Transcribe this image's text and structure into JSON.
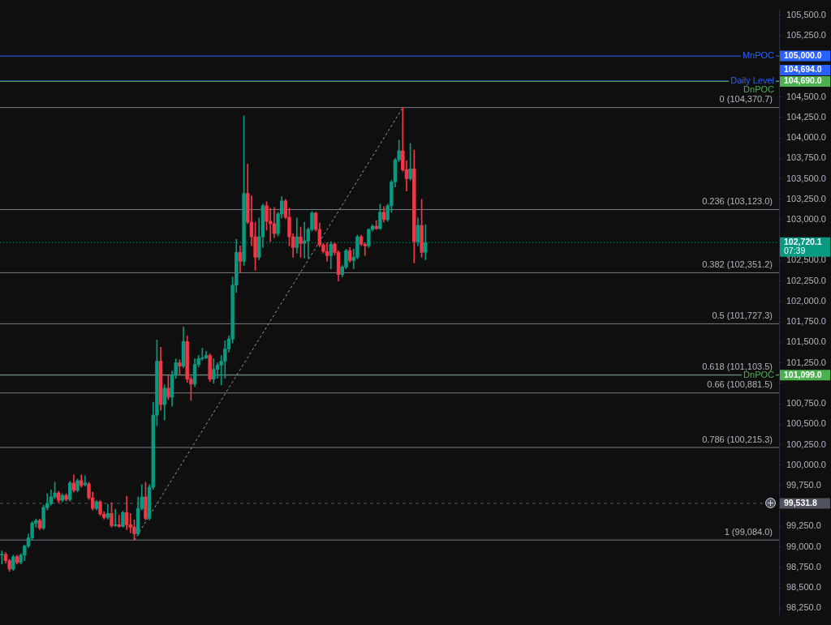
{
  "chart_data": {
    "type": "candlestick",
    "categories": [
      null,
      null,
      null,
      null,
      null,
      null,
      null,
      null,
      null,
      null,
      null,
      null,
      null,
      null,
      null,
      null,
      null,
      null,
      null,
      null,
      null,
      null,
      null,
      null,
      null,
      null,
      null,
      null,
      null,
      null,
      null,
      null,
      null,
      null,
      null,
      null,
      null,
      null,
      null,
      null,
      null,
      null,
      null,
      null,
      null,
      null,
      null,
      null,
      null,
      null,
      null,
      null,
      null,
      null,
      null,
      null,
      null,
      null,
      null,
      null,
      null,
      null,
      null,
      null,
      null,
      null,
      null,
      null,
      null,
      null,
      null,
      null,
      null,
      null,
      null,
      null,
      null,
      null,
      null,
      null,
      null,
      null,
      null,
      null,
      null,
      null,
      null,
      null,
      null,
      null,
      null,
      null,
      null,
      null,
      null,
      null,
      null,
      null,
      null,
      null,
      null,
      null,
      null,
      null,
      null,
      null,
      null,
      null,
      null,
      null,
      null,
      null,
      null,
      null,
      null,
      null,
      null,
      null,
      null,
      null,
      null,
      null,
      null,
      null,
      null,
      null,
      null,
      null,
      null,
      null,
      null,
      null,
      null,
      null,
      null,
      null,
      null,
      null,
      null,
      null,
      null,
      null,
      null,
      null,
      null,
      null,
      null,
      null,
      null,
      null,
      null,
      null,
      null,
      null,
      null,
      null,
      null,
      null,
      null,
      null,
      null,
      null,
      null,
      null,
      null,
      null,
      null,
      null,
      null,
      null,
      null,
      null,
      null,
      null,
      null,
      null,
      null,
      null,
      null,
      null,
      null,
      null,
      null,
      null,
      null,
      null,
      null,
      null,
      null,
      null,
      null,
      null,
      null,
      null,
      null,
      null,
      null,
      null,
      null,
      null,
      null,
      null,
      null,
      null,
      null,
      null
    ],
    "ohlc": [
      [
        98900,
        98950,
        98790,
        98910
      ],
      [
        98910,
        98930,
        98800,
        98830
      ],
      [
        98830,
        98850,
        98700,
        98730
      ],
      [
        98730,
        98900,
        98710,
        98880
      ],
      [
        98880,
        98900,
        98790,
        98810
      ],
      [
        98810,
        98920,
        98790,
        98900
      ],
      [
        98900,
        99020,
        98830,
        99010
      ],
      [
        99010,
        99160,
        98990,
        99110
      ],
      [
        99110,
        99310,
        99090,
        99290
      ],
      [
        99290,
        99340,
        99240,
        99320
      ],
      [
        99320,
        99340,
        99210,
        99230
      ],
      [
        99230,
        99510,
        99210,
        99480
      ],
      [
        99480,
        99650,
        99450,
        99530
      ],
      [
        99530,
        99700,
        99510,
        99610
      ],
      [
        99610,
        99790,
        99590,
        99660
      ],
      [
        99660,
        99680,
        99540,
        99570
      ],
      [
        99570,
        99650,
        99550,
        99630
      ],
      [
        99630,
        99650,
        99560,
        99580
      ],
      [
        99580,
        99800,
        99560,
        99780
      ],
      [
        99780,
        99880,
        99670,
        99690
      ],
      [
        99690,
        99830,
        99670,
        99810
      ],
      [
        99810,
        99880,
        99730,
        99750
      ],
      [
        99760,
        99870,
        99740,
        99780
      ],
      [
        99770,
        99790,
        99580,
        99600
      ],
      [
        99600,
        99670,
        99450,
        99470
      ],
      [
        99470,
        99570,
        99450,
        99550
      ],
      [
        99550,
        99570,
        99380,
        99400
      ],
      [
        99400,
        99430,
        99340,
        99360
      ],
      [
        99360,
        99520,
        99340,
        99410
      ],
      [
        99410,
        99540,
        99240,
        99260
      ],
      [
        99260,
        99460,
        99250,
        99270
      ],
      [
        99270,
        99390,
        99240,
        99250
      ],
      [
        99250,
        99440,
        99240,
        99420
      ],
      [
        99420,
        99620,
        99210,
        99270
      ],
      [
        99270,
        99410,
        99170,
        99240
      ],
      [
        99240,
        99330,
        99080,
        99160
      ],
      [
        99160,
        99610,
        99140,
        99470
      ],
      [
        99470,
        99760,
        99450,
        99610
      ],
      [
        99610,
        99790,
        99330,
        99350
      ],
      [
        99350,
        99760,
        99330,
        99730
      ],
      [
        99730,
        100770,
        99700,
        100610
      ],
      [
        100610,
        101530,
        100480,
        101270
      ],
      [
        101270,
        101440,
        100670,
        100740
      ],
      [
        100740,
        100980,
        100550,
        100940
      ],
      [
        100940,
        101100,
        100800,
        100830
      ],
      [
        100830,
        101150,
        100720,
        101100
      ],
      [
        101100,
        101300,
        101060,
        101250
      ],
      [
        101250,
        101290,
        101100,
        101210
      ],
      [
        101210,
        101690,
        101190,
        101510
      ],
      [
        101510,
        101580,
        101010,
        101050
      ],
      [
        101050,
        101080,
        100790,
        100990
      ],
      [
        100990,
        101300,
        100960,
        101230
      ],
      [
        101230,
        101340,
        101200,
        101300
      ],
      [
        101300,
        101430,
        101280,
        101310
      ],
      [
        101310,
        101390,
        101300,
        101340
      ],
      [
        101340,
        101360,
        101020,
        101050
      ],
      [
        101050,
        101300,
        101000,
        101170
      ],
      [
        101170,
        101250,
        101060,
        101220
      ],
      [
        101220,
        101340,
        100980,
        101270
      ],
      [
        101270,
        101520,
        101060,
        101420
      ],
      [
        101420,
        101580,
        101380,
        101540
      ],
      [
        101540,
        102300,
        101490,
        102200
      ],
      [
        102200,
        102760,
        102110,
        102600
      ],
      [
        102600,
        102680,
        102350,
        102490
      ],
      [
        102490,
        104270,
        102440,
        103320
      ],
      [
        103320,
        103680,
        102950,
        102970
      ],
      [
        102970,
        103290,
        102680,
        102790
      ],
      [
        102790,
        102970,
        102380,
        102540
      ],
      [
        102540,
        103020,
        102510,
        102790
      ],
      [
        102790,
        103190,
        102660,
        103170
      ],
      [
        103170,
        103220,
        102870,
        102980
      ],
      [
        102980,
        103140,
        102730,
        102950
      ],
      [
        102950,
        103150,
        102780,
        102830
      ],
      [
        102830,
        103090,
        102800,
        103070
      ],
      [
        103070,
        103280,
        103020,
        103230
      ],
      [
        103230,
        103250,
        103010,
        103030
      ],
      [
        103030,
        103140,
        102680,
        102790
      ],
      [
        102790,
        102830,
        102540,
        102660
      ],
      [
        102660,
        103020,
        102590,
        102790
      ],
      [
        102790,
        102910,
        102540,
        102710
      ],
      [
        102710,
        102970,
        102530,
        102740
      ],
      [
        102740,
        102900,
        102530,
        102880
      ],
      [
        102880,
        103100,
        102860,
        103080
      ],
      [
        103080,
        103090,
        102860,
        102880
      ],
      [
        102880,
        102960,
        102670,
        102690
      ],
      [
        102690,
        102710,
        102590,
        102610
      ],
      [
        102610,
        102720,
        102490,
        102560
      ],
      [
        102560,
        102730,
        102400,
        102700
      ],
      [
        102700,
        102720,
        102570,
        102600
      ],
      [
        102600,
        102620,
        102250,
        102330
      ],
      [
        102330,
        102440,
        102300,
        102420
      ],
      [
        102420,
        102640,
        102400,
        102620
      ],
      [
        102620,
        102660,
        102480,
        102500
      ],
      [
        102500,
        102640,
        102400,
        102540
      ],
      [
        102540,
        102810,
        102520,
        102790
      ],
      [
        102790,
        102810,
        102680,
        102700
      ],
      [
        102700,
        102720,
        102560,
        102680
      ],
      [
        102680,
        102890,
        102660,
        102880
      ],
      [
        102880,
        102940,
        102860,
        102920
      ],
      [
        102920,
        102990,
        102880,
        102890
      ],
      [
        102890,
        103190,
        102880,
        103090
      ],
      [
        103090,
        103160,
        102970,
        103000
      ],
      [
        103000,
        103190,
        102980,
        103170
      ],
      [
        103170,
        103480,
        103090,
        103460
      ],
      [
        103460,
        103750,
        103400,
        103730
      ],
      [
        103730,
        103970,
        103710,
        103840
      ],
      [
        103840,
        104370,
        103590,
        103610
      ],
      [
        103610,
        103720,
        103350,
        103500
      ],
      [
        103500,
        103930,
        103480,
        103620
      ],
      [
        103620,
        103850,
        102470,
        102730
      ],
      [
        102730,
        103020,
        102680,
        102930
      ],
      [
        102930,
        103250,
        102540,
        102600
      ],
      [
        102600,
        102940,
        102510,
        102720
      ],
      null,
      null,
      null,
      null,
      null,
      null,
      null,
      null,
      null,
      null,
      null,
      null,
      null,
      null,
      null,
      null,
      null,
      null,
      null,
      null,
      null,
      null,
      null,
      null,
      null,
      null,
      null,
      null,
      null,
      null,
      null,
      null,
      null,
      null,
      null,
      null,
      null,
      null,
      null,
      null,
      null,
      null,
      null,
      null,
      null,
      null,
      null,
      null,
      null,
      null,
      null,
      null,
      null,
      null,
      null,
      null,
      null,
      null,
      null,
      null,
      null,
      null,
      null,
      null,
      null,
      null,
      null,
      null,
      null,
      null,
      null,
      null,
      null,
      null,
      null,
      null,
      null,
      null,
      null,
      null,
      null,
      null,
      null,
      null,
      null,
      null,
      null,
      null,
      null,
      null,
      null,
      null,
      null
    ],
    "colors": [
      "#089981",
      "#f23645",
      "#f23645",
      "#089981",
      "#f23645",
      "#089981",
      "#089981",
      "#089981",
      "#089981",
      "#089981",
      "#f23645",
      "#089981",
      "#089981",
      "#089981",
      "#089981",
      "#f23645",
      "#089981",
      "#f23645",
      "#089981",
      "#f23645",
      "#089981",
      "#f23645",
      "#089981",
      "#f23645",
      "#f23645",
      "#089981",
      "#f23645",
      "#f23645",
      "#089981",
      "#f23645",
      "#089981",
      "#f23645",
      "#089981",
      "#f23645",
      "#f23645",
      "#f23645",
      "#089981",
      "#089981",
      "#f23645",
      "#089981",
      "#089981",
      "#089981",
      "#f23645",
      "#089981",
      "#f23645",
      "#089981",
      "#089981",
      "#f23645",
      "#089981",
      "#f23645",
      "#f23645",
      "#089981",
      "#089981",
      "#089981",
      "#089981",
      "#f23645",
      "#089981",
      "#089981",
      "#089981",
      "#089981",
      "#089981",
      "#089981",
      "#089981",
      "#f23645",
      "#089981",
      "#f23645",
      "#f23645",
      "#f23645",
      "#089981",
      "#089981",
      "#f23645",
      "#f23645",
      "#f23645",
      "#089981",
      "#089981",
      "#f23645",
      "#f23645",
      "#f23645",
      "#089981",
      "#f23645",
      "#089981",
      "#089981",
      "#089981",
      "#f23645",
      "#f23645",
      "#f23645",
      "#f23645",
      "#089981",
      "#f23645",
      "#f23645",
      "#089981",
      "#089981",
      "#f23645",
      "#089981",
      "#089981",
      "#f23645",
      "#f23645",
      "#089981",
      "#089981",
      "#f23645",
      "#089981",
      "#f23645",
      "#089981",
      "#089981",
      "#089981",
      "#089981",
      "#f23645",
      "#f23645",
      "#089981",
      "#f23645",
      "#089981",
      "#f23645",
      "#089981",
      null,
      null,
      null,
      null,
      null,
      null,
      null,
      null,
      null,
      null,
      null,
      null,
      null,
      null,
      null,
      null,
      null,
      null,
      null,
      null,
      null,
      null,
      null,
      null,
      null,
      null,
      null,
      null,
      null,
      null,
      null,
      null,
      null,
      null,
      null,
      null,
      null,
      null,
      null,
      null,
      null,
      null,
      null,
      null,
      null,
      null,
      null,
      null,
      null,
      null,
      null,
      null,
      null,
      null,
      null,
      null,
      null,
      null,
      null,
      null,
      null,
      null,
      null,
      null,
      null,
      null,
      null,
      null,
      null,
      null,
      null,
      null,
      null,
      null,
      null,
      null,
      null,
      null,
      null,
      null,
      null,
      null,
      null,
      null,
      null,
      null,
      null,
      null,
      null,
      null,
      null,
      null,
      null
    ],
    "series": [
      {
        "type": "line",
        "color": "#9598a1",
        "line_style": "dashed",
        "marker": "none",
        "values": [
          null,
          null,
          null,
          null,
          null,
          null,
          null,
          null,
          null,
          null,
          null,
          null,
          null,
          null,
          null,
          null,
          null,
          null,
          null,
          null,
          null,
          null,
          null,
          null,
          null,
          null,
          null,
          null,
          null,
          null,
          null,
          null,
          null,
          null,
          null,
          99080,
          null,
          null,
          null,
          null,
          null,
          null,
          null,
          null,
          null,
          null,
          null,
          null,
          null,
          null,
          null,
          null,
          null,
          null,
          null,
          null,
          null,
          null,
          null,
          null,
          null,
          null,
          null,
          null,
          null,
          null,
          null,
          null,
          null,
          null,
          null,
          null,
          null,
          null,
          null,
          null,
          null,
          null,
          null,
          null,
          null,
          null,
          null,
          null,
          null,
          null,
          null,
          null,
          null,
          null,
          null,
          null,
          null,
          null,
          null,
          null,
          null,
          null,
          null,
          null,
          null,
          null,
          null,
          null,
          null,
          null,
          104370,
          null,
          null,
          null,
          null,
          null,
          null,
          null,
          null,
          null,
          null,
          null,
          null,
          null,
          null,
          null,
          null,
          null,
          null,
          null,
          null,
          null,
          null,
          null,
          null,
          null,
          null,
          null,
          null,
          null,
          null,
          null,
          null,
          null,
          null,
          null,
          null,
          null,
          null,
          null,
          null,
          null,
          null,
          null,
          null,
          null,
          null,
          null,
          null,
          null,
          null,
          null,
          null,
          null,
          null,
          null,
          null,
          null,
          null,
          null,
          null,
          null,
          null,
          null,
          null,
          null,
          null,
          null,
          null,
          null,
          null,
          null,
          null,
          null,
          null,
          null,
          null,
          null,
          null,
          null,
          null,
          null,
          null,
          null,
          null,
          null,
          null,
          null,
          null,
          null,
          null,
          null,
          null,
          null,
          null,
          null,
          null,
          null,
          null,
          null
        ]
      }
    ],
    "ylim": [
      98170,
      105560
    ],
    "yticks": [
      {
        "value": 98250,
        "label": "98,250.0"
      },
      {
        "value": 98500,
        "label": "98,500.0"
      },
      {
        "value": 98750,
        "label": "98,750.0"
      },
      {
        "value": 99000,
        "label": "99,000.0"
      },
      {
        "value": 99250,
        "label": "99,250.0"
      },
      {
        "value": 99500,
        "label": null
      },
      {
        "value": 99750,
        "label": "99,750.0"
      },
      {
        "value": 100000,
        "label": "100,000.0"
      },
      {
        "value": 100250,
        "label": "100,250.0"
      },
      {
        "value": 100500,
        "label": "100,500.0"
      },
      {
        "value": 100750,
        "label": "100,750.0"
      },
      {
        "value": 101000,
        "label": null
      },
      {
        "value": 101250,
        "label": "101,250.0"
      },
      {
        "value": 101500,
        "label": "101,500.0"
      },
      {
        "value": 101750,
        "label": "101,750.0"
      },
      {
        "value": 102000,
        "label": "102,000.0"
      },
      {
        "value": 102250,
        "label": "102,250.0"
      },
      {
        "value": 102500,
        "label": "102,500.0"
      },
      {
        "value": 102750,
        "label": null
      },
      {
        "value": 103000,
        "label": "103,000.0"
      },
      {
        "value": 103250,
        "label": "103,250.0"
      },
      {
        "value": 103500,
        "label": "103,500.0"
      },
      {
        "value": 103750,
        "label": "103,750.0"
      },
      {
        "value": 104000,
        "label": "104,000.0"
      },
      {
        "value": 104250,
        "label": "104,250.0"
      },
      {
        "value": 104500,
        "label": "104,500.0"
      },
      {
        "value": 104750,
        "label": null
      },
      {
        "value": 105000,
        "label": null
      },
      {
        "value": 105250,
        "label": "105,250.0"
      },
      {
        "value": 105500,
        "label": "105,500.0"
      }
    ],
    "ref_lines": [
      {
        "axis": "y",
        "value": 105000,
        "label": "MnPOC",
        "color": "#2962ff"
      },
      {
        "axis": "y",
        "value": 104694,
        "label": "Daily Level",
        "color": "#2962ff"
      },
      {
        "axis": "y",
        "value": 104690,
        "label": "DnPOC",
        "color": "#4caf50"
      },
      {
        "axis": "y",
        "value": 101099,
        "label": "DnPOC",
        "color": "#4caf50"
      },
      {
        "axis": "y",
        "value": 102720.1,
        "color": "#089981",
        "line_style": "dotted"
      },
      {
        "axis": "y",
        "value": 99531.8,
        "color": "#50535e",
        "line_style": "dashed"
      },
      {
        "axis": "y",
        "value": 104370.7,
        "label": "0 (104,370.7)"
      },
      {
        "axis": "y",
        "value": 103123,
        "label": "0.236 (103,123.0)"
      },
      {
        "axis": "y",
        "value": 102351.2,
        "label": "0.382 (102,351.2)"
      },
      {
        "axis": "y",
        "value": 101727.3,
        "label": "0.5 (101,727.3)"
      },
      {
        "axis": "y",
        "value": 101103.5,
        "label": "0.618 (101,103.5)"
      },
      {
        "axis": "y",
        "value": 100881.5,
        "label": "0.66 (100,881.5)"
      },
      {
        "axis": "y",
        "value": 100215.3,
        "label": "0.786 (100,215.3)"
      },
      {
        "axis": "y",
        "value": 99084,
        "label": "1 (99,084.0)"
      }
    ],
    "annotations": [
      "105,000.0",
      "104,694.0",
      "104,690.0",
      "101,099.0",
      "102,720.1",
      "07:39",
      "99,531.8"
    ],
    "tick_labels": "y",
    "legend": false
  }
}
